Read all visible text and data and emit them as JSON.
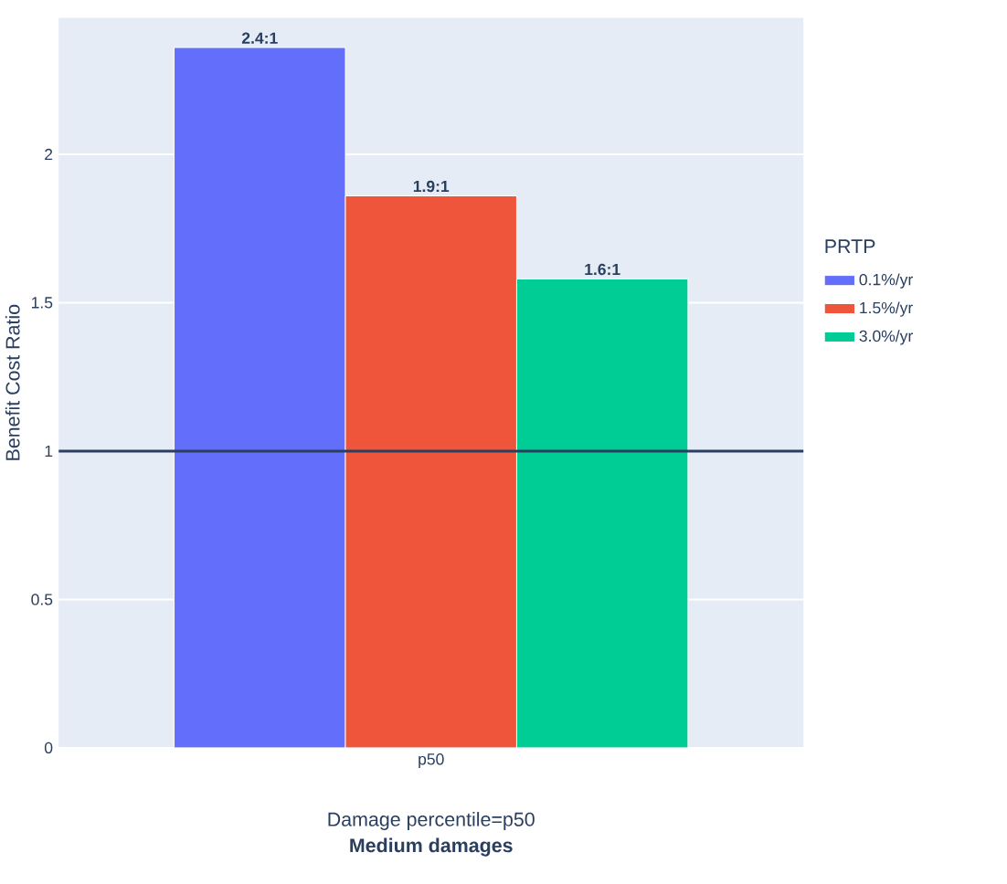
{
  "chart_data": {
    "type": "bar",
    "xlabel": "Damage percentile=p50",
    "ylabel": "Benefit Cost Ratio",
    "legend_title": "PRTP",
    "annotations": [
      "Medium damages"
    ],
    "categories": [
      "p50"
    ],
    "series": [
      {
        "name": "0.1%/yr",
        "color": "#636efa",
        "values": [
          2.36
        ],
        "value_labels": [
          "2.4:1"
        ]
      },
      {
        "name": "1.5%/yr",
        "color": "#ef553b",
        "values": [
          1.86
        ],
        "value_labels": [
          "1.9:1"
        ]
      },
      {
        "name": "3.0%/yr",
        "color": "#00cc96",
        "values": [
          1.58
        ],
        "value_labels": [
          "1.6:1"
        ]
      }
    ],
    "ylim": [
      0,
      2.46
    ],
    "yticks": [
      0,
      0.5,
      1,
      1.5,
      2
    ],
    "grid": "y",
    "legend": "right",
    "ref_lines": [
      {
        "axis": "y",
        "value": 1,
        "color": "#2a3f5f"
      }
    ]
  }
}
